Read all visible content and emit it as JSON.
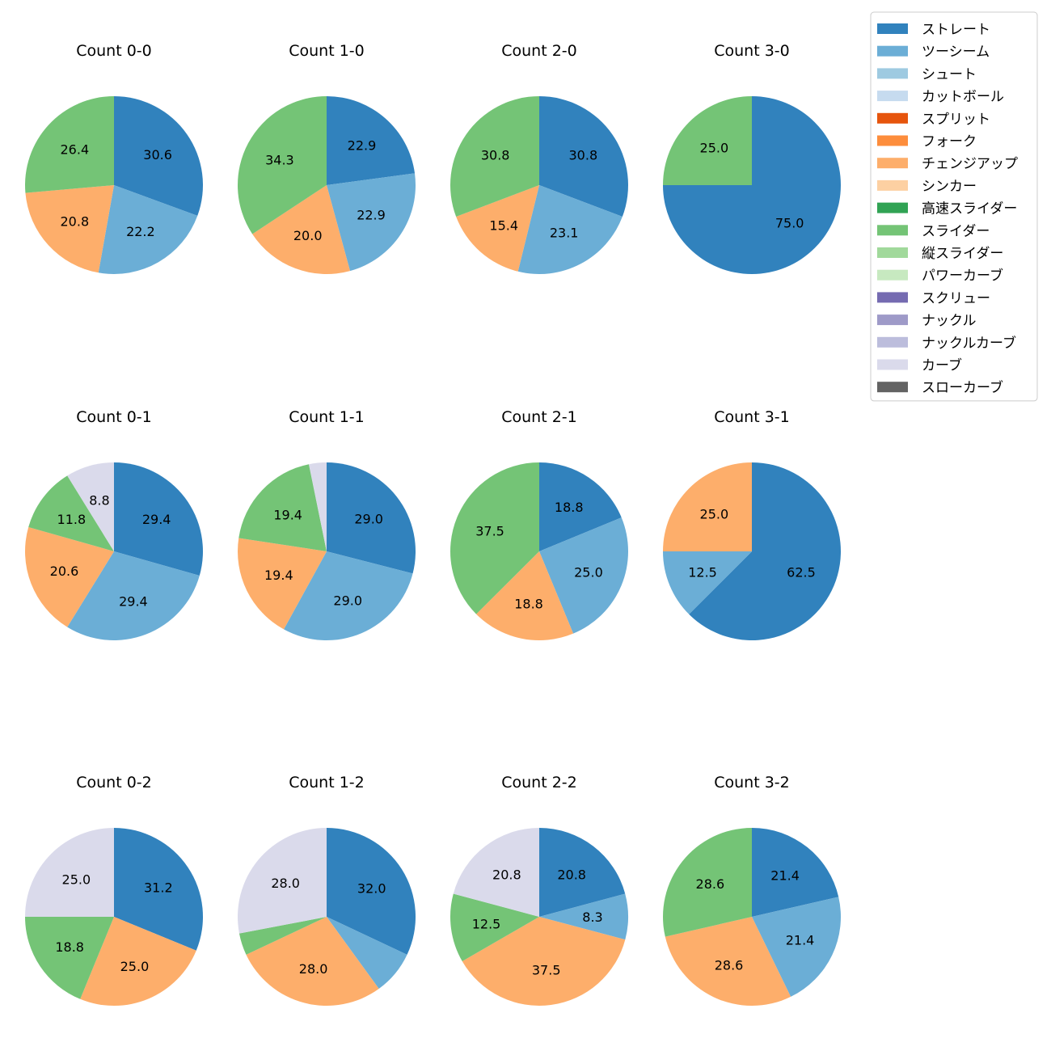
{
  "chart_data": {
    "type": "pie",
    "legend": {
      "placement": "top-right",
      "entries": [
        {
          "name": "ストレート",
          "color": "#3182bd"
        },
        {
          "name": "ツーシーム",
          "color": "#6baed6"
        },
        {
          "name": "シュート",
          "color": "#9ecae1"
        },
        {
          "name": "カットボール",
          "color": "#c6dbef"
        },
        {
          "name": "スプリット",
          "color": "#e6550d"
        },
        {
          "name": "フォーク",
          "color": "#fd8d3c"
        },
        {
          "name": "チェンジアップ",
          "color": "#fdae6b"
        },
        {
          "name": "シンカー",
          "color": "#fdd0a2"
        },
        {
          "name": "高速スライダー",
          "color": "#31a354"
        },
        {
          "name": "スライダー",
          "color": "#74c476"
        },
        {
          "name": "縦スライダー",
          "color": "#a1d99b"
        },
        {
          "name": "パワーカーブ",
          "color": "#c7e9c0"
        },
        {
          "name": "スクリュー",
          "color": "#756bb1"
        },
        {
          "name": "ナックル",
          "color": "#9e9ac8"
        },
        {
          "name": "ナックルカーブ",
          "color": "#bcbddc"
        },
        {
          "name": "カーブ",
          "color": "#dadaeb"
        },
        {
          "name": "スローカーブ",
          "color": "#636363"
        }
      ]
    },
    "pies": [
      {
        "title": "Count 0-0",
        "slices": [
          {
            "pitch": "ストレート",
            "value": 30.6,
            "label": "30.6"
          },
          {
            "pitch": "ツーシーム",
            "value": 22.2,
            "label": "22.2"
          },
          {
            "pitch": "チェンジアップ",
            "value": 20.8,
            "label": "20.8"
          },
          {
            "pitch": "スライダー",
            "value": 26.4,
            "label": "26.4"
          }
        ]
      },
      {
        "title": "Count 1-0",
        "slices": [
          {
            "pitch": "ストレート",
            "value": 22.9,
            "label": "22.9"
          },
          {
            "pitch": "ツーシーム",
            "value": 22.9,
            "label": "22.9"
          },
          {
            "pitch": "チェンジアップ",
            "value": 20.0,
            "label": "20.0"
          },
          {
            "pitch": "スライダー",
            "value": 34.3,
            "label": "34.3"
          }
        ]
      },
      {
        "title": "Count 2-0",
        "slices": [
          {
            "pitch": "ストレート",
            "value": 30.8,
            "label": "30.8"
          },
          {
            "pitch": "ツーシーム",
            "value": 23.1,
            "label": "23.1"
          },
          {
            "pitch": "チェンジアップ",
            "value": 15.4,
            "label": "15.4"
          },
          {
            "pitch": "スライダー",
            "value": 30.8,
            "label": "30.8"
          }
        ]
      },
      {
        "title": "Count 3-0",
        "slices": [
          {
            "pitch": "ストレート",
            "value": 75.0,
            "label": "75.0"
          },
          {
            "pitch": "スライダー",
            "value": 25.0,
            "label": "25.0"
          }
        ]
      },
      {
        "title": "Count 0-1",
        "slices": [
          {
            "pitch": "ストレート",
            "value": 29.4,
            "label": "29.4"
          },
          {
            "pitch": "ツーシーム",
            "value": 29.4,
            "label": "29.4"
          },
          {
            "pitch": "チェンジアップ",
            "value": 20.6,
            "label": "20.6"
          },
          {
            "pitch": "スライダー",
            "value": 11.8,
            "label": "11.8"
          },
          {
            "pitch": "カーブ",
            "value": 8.8,
            "label": "8.8"
          }
        ]
      },
      {
        "title": "Count 1-1",
        "slices": [
          {
            "pitch": "ストレート",
            "value": 29.0,
            "label": "29.0"
          },
          {
            "pitch": "ツーシーム",
            "value": 29.0,
            "label": "29.0"
          },
          {
            "pitch": "チェンジアップ",
            "value": 19.4,
            "label": "19.4"
          },
          {
            "pitch": "スライダー",
            "value": 19.4,
            "label": "19.4"
          },
          {
            "pitch": "カーブ",
            "value": 3.2,
            "label": ""
          }
        ]
      },
      {
        "title": "Count 2-1",
        "slices": [
          {
            "pitch": "ストレート",
            "value": 18.8,
            "label": "18.8"
          },
          {
            "pitch": "ツーシーム",
            "value": 25.0,
            "label": "25.0"
          },
          {
            "pitch": "チェンジアップ",
            "value": 18.8,
            "label": "18.8"
          },
          {
            "pitch": "スライダー",
            "value": 37.5,
            "label": "37.5"
          }
        ]
      },
      {
        "title": "Count 3-1",
        "slices": [
          {
            "pitch": "ストレート",
            "value": 62.5,
            "label": "62.5"
          },
          {
            "pitch": "ツーシーム",
            "value": 12.5,
            "label": "12.5"
          },
          {
            "pitch": "チェンジアップ",
            "value": 25.0,
            "label": "25.0"
          }
        ]
      },
      {
        "title": "Count 0-2",
        "slices": [
          {
            "pitch": "ストレート",
            "value": 31.2,
            "label": "31.2"
          },
          {
            "pitch": "チェンジアップ",
            "value": 25.0,
            "label": "25.0"
          },
          {
            "pitch": "スライダー",
            "value": 18.8,
            "label": "18.8"
          },
          {
            "pitch": "カーブ",
            "value": 25.0,
            "label": "25.0"
          }
        ]
      },
      {
        "title": "Count 1-2",
        "slices": [
          {
            "pitch": "ストレート",
            "value": 32.0,
            "label": "32.0"
          },
          {
            "pitch": "ツーシーム",
            "value": 8.0,
            "label": ""
          },
          {
            "pitch": "チェンジアップ",
            "value": 28.0,
            "label": "28.0"
          },
          {
            "pitch": "スライダー",
            "value": 4.0,
            "label": ""
          },
          {
            "pitch": "カーブ",
            "value": 28.0,
            "label": "28.0"
          }
        ]
      },
      {
        "title": "Count 2-2",
        "slices": [
          {
            "pitch": "ストレート",
            "value": 20.8,
            "label": "20.8"
          },
          {
            "pitch": "ツーシーム",
            "value": 8.3,
            "label": "8.3"
          },
          {
            "pitch": "チェンジアップ",
            "value": 37.5,
            "label": "37.5"
          },
          {
            "pitch": "スライダー",
            "value": 12.5,
            "label": "12.5"
          },
          {
            "pitch": "カーブ",
            "value": 20.8,
            "label": "20.8"
          }
        ]
      },
      {
        "title": "Count 3-2",
        "slices": [
          {
            "pitch": "ストレート",
            "value": 21.4,
            "label": "21.4"
          },
          {
            "pitch": "ツーシーム",
            "value": 21.4,
            "label": "21.4"
          },
          {
            "pitch": "チェンジアップ",
            "value": 28.6,
            "label": "28.6"
          },
          {
            "pitch": "スライダー",
            "value": 28.6,
            "label": "28.6"
          }
        ]
      }
    ]
  }
}
